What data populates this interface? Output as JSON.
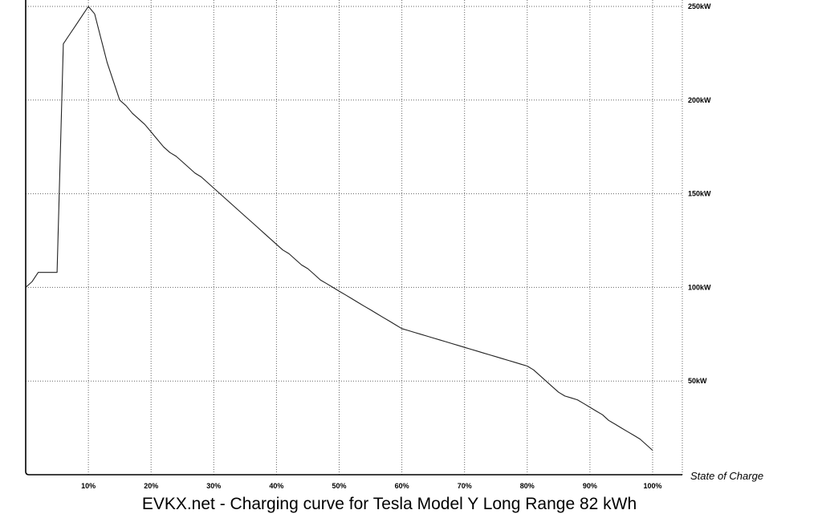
{
  "chart_data": {
    "type": "line",
    "title": "EVKX.net - Charging curve for Tesla Model Y Long Range 82 kWh",
    "xlabel": "State of Charge",
    "ylabel": "",
    "xlim": [
      0,
      100
    ],
    "ylim": [
      0,
      250
    ],
    "grid": true,
    "x_ticks": [
      10,
      20,
      30,
      40,
      50,
      60,
      70,
      80,
      90,
      100
    ],
    "x_tick_labels": [
      "10%",
      "20%",
      "30%",
      "40%",
      "50%",
      "60%",
      "70%",
      "80%",
      "90%",
      "100%"
    ],
    "y_ticks": [
      50,
      100,
      150,
      200,
      250
    ],
    "y_tick_labels": [
      "50kW",
      "100kW",
      "150kW",
      "200kW",
      "250kW"
    ],
    "series": [
      {
        "x": [
          0,
          1,
          2,
          3,
          4,
          5,
          6,
          7,
          8,
          9,
          10,
          11,
          12,
          13,
          14,
          15,
          16,
          17,
          18,
          19,
          20,
          21,
          22,
          23,
          24,
          25,
          26,
          27,
          28,
          29,
          30,
          31,
          32,
          33,
          34,
          35,
          36,
          37,
          38,
          39,
          40,
          41,
          42,
          43,
          44,
          45,
          46,
          47,
          48,
          49,
          50,
          51,
          52,
          53,
          54,
          55,
          56,
          57,
          58,
          59,
          60,
          61,
          62,
          63,
          64,
          65,
          66,
          67,
          68,
          69,
          70,
          71,
          72,
          73,
          74,
          75,
          76,
          77,
          78,
          79,
          80,
          81,
          82,
          83,
          84,
          85,
          86,
          87,
          88,
          89,
          90,
          91,
          92,
          93,
          94,
          95,
          96,
          97,
          98,
          99,
          100
        ],
        "values": [
          100,
          103,
          108,
          108,
          108,
          108,
          230,
          235,
          240,
          245,
          250,
          246,
          233,
          220,
          210,
          200,
          197,
          193,
          190,
          187,
          183,
          179,
          175,
          172,
          170,
          167,
          164,
          161,
          159,
          156,
          153,
          150,
          147,
          144,
          141,
          138,
          135,
          132,
          129,
          126,
          123,
          120,
          118,
          115,
          112,
          110,
          107,
          104,
          102,
          100,
          98,
          96,
          94,
          92,
          90,
          88,
          86,
          84,
          82,
          80,
          78,
          77,
          76,
          75,
          74,
          73,
          72,
          71,
          70,
          69,
          68,
          67,
          66,
          65,
          64,
          63,
          62,
          61,
          60,
          59,
          58,
          56,
          53,
          50,
          47,
          44,
          42,
          41,
          40,
          38,
          36,
          34,
          32,
          29,
          27,
          25,
          23,
          21,
          19,
          16,
          13
        ]
      }
    ]
  }
}
